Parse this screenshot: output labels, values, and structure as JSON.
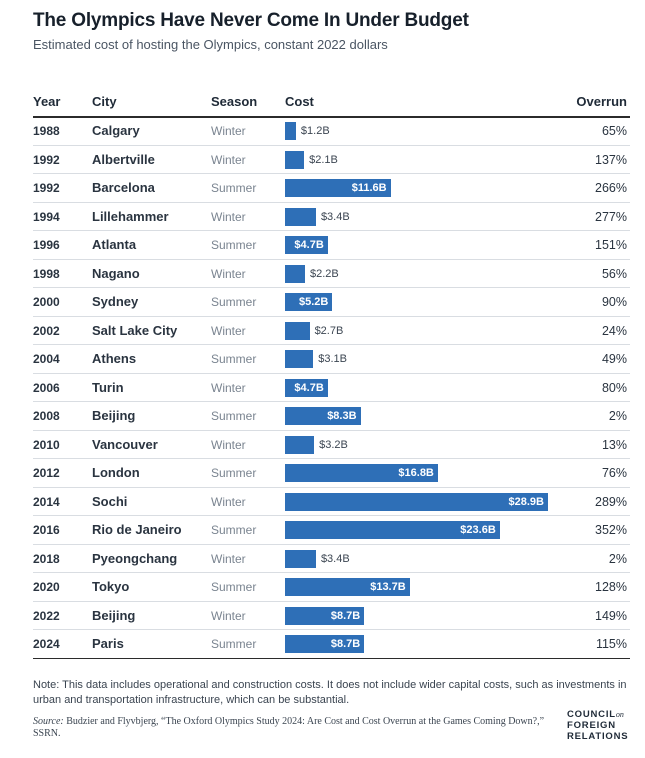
{
  "title": "The Olympics Have Never Come In Under Budget",
  "subtitle": "Estimated cost of hosting the Olympics, constant 2022 dollars",
  "headers": {
    "year": "Year",
    "city": "City",
    "season": "Season",
    "cost": "Cost",
    "overrun": "Overrun"
  },
  "colors": {
    "bar": "#2e6fb7",
    "rule": "#2b2b2b",
    "row_separator": "#d9dde2"
  },
  "chart_data": {
    "type": "bar",
    "orientation": "horizontal",
    "title": "The Olympics Have Never Come In Under Budget",
    "subtitle": "Estimated cost of hosting the Olympics, constant 2022 dollars",
    "ylabel": "Cost",
    "value_unit": "billion USD (2022)",
    "xlim": [
      0,
      28.9
    ],
    "rows": [
      {
        "year": "1988",
        "city": "Calgary",
        "season": "Winter",
        "cost": 1.2,
        "cost_label": "$1.2B",
        "overrun": "65%"
      },
      {
        "year": "1992",
        "city": "Albertville",
        "season": "Winter",
        "cost": 2.1,
        "cost_label": "$2.1B",
        "overrun": "137%"
      },
      {
        "year": "1992",
        "city": "Barcelona",
        "season": "Summer",
        "cost": 11.6,
        "cost_label": "$11.6B",
        "overrun": "266%"
      },
      {
        "year": "1994",
        "city": "Lillehammer",
        "season": "Winter",
        "cost": 3.4,
        "cost_label": "$3.4B",
        "overrun": "277%"
      },
      {
        "year": "1996",
        "city": "Atlanta",
        "season": "Summer",
        "cost": 4.7,
        "cost_label": "$4.7B",
        "overrun": "151%"
      },
      {
        "year": "1998",
        "city": "Nagano",
        "season": "Winter",
        "cost": 2.2,
        "cost_label": "$2.2B",
        "overrun": "56%"
      },
      {
        "year": "2000",
        "city": "Sydney",
        "season": "Summer",
        "cost": 5.2,
        "cost_label": "$5.2B",
        "overrun": "90%"
      },
      {
        "year": "2002",
        "city": "Salt Lake City",
        "season": "Winter",
        "cost": 2.7,
        "cost_label": "$2.7B",
        "overrun": "24%"
      },
      {
        "year": "2004",
        "city": "Athens",
        "season": "Summer",
        "cost": 3.1,
        "cost_label": "$3.1B",
        "overrun": "49%"
      },
      {
        "year": "2006",
        "city": "Turin",
        "season": "Winter",
        "cost": 4.7,
        "cost_label": "$4.7B",
        "overrun": "80%"
      },
      {
        "year": "2008",
        "city": "Beijing",
        "season": "Summer",
        "cost": 8.3,
        "cost_label": "$8.3B",
        "overrun": "2%"
      },
      {
        "year": "2010",
        "city": "Vancouver",
        "season": "Winter",
        "cost": 3.2,
        "cost_label": "$3.2B",
        "overrun": "13%"
      },
      {
        "year": "2012",
        "city": "London",
        "season": "Summer",
        "cost": 16.8,
        "cost_label": "$16.8B",
        "overrun": "76%"
      },
      {
        "year": "2014",
        "city": "Sochi",
        "season": "Winter",
        "cost": 28.9,
        "cost_label": "$28.9B",
        "overrun": "289%"
      },
      {
        "year": "2016",
        "city": "Rio de Janeiro",
        "season": "Summer",
        "cost": 23.6,
        "cost_label": "$23.6B",
        "overrun": "352%"
      },
      {
        "year": "2018",
        "city": "Pyeongchang",
        "season": "Winter",
        "cost": 3.4,
        "cost_label": "$3.4B",
        "overrun": "2%"
      },
      {
        "year": "2020",
        "city": "Tokyo",
        "season": "Summer",
        "cost": 13.7,
        "cost_label": "$13.7B",
        "overrun": "128%"
      },
      {
        "year": "2022",
        "city": "Beijing",
        "season": "Winter",
        "cost": 8.7,
        "cost_label": "$8.7B",
        "overrun": "149%"
      },
      {
        "year": "2024",
        "city": "Paris",
        "season": "Summer",
        "cost": 8.7,
        "cost_label": "$8.7B",
        "overrun": "115%"
      }
    ]
  },
  "note": "Note: This data includes operational and construction costs. It does not include wider capital costs, such as investments in urban and transportation infrastructure, which can be substantial.",
  "source": {
    "label": "Source:",
    "text": "Budzier and Flyvbjerg, “The Oxford Olympics Study 2024: Are Cost and Cost Overrun at the Games Coming Down?,” SSRN."
  },
  "logo": {
    "line1": "COUNCIL",
    "on": "on",
    "line2": "FOREIGN",
    "line3": "RELATIONS"
  }
}
